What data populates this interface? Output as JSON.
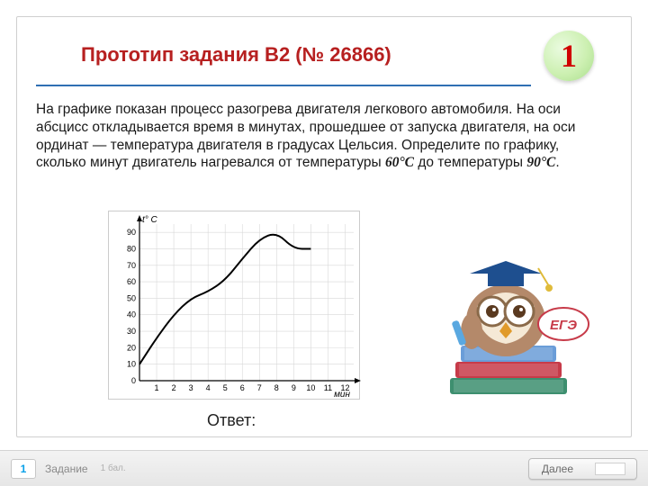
{
  "title": "Прототип задания B2 (№ 26866)",
  "badge_number": "1",
  "problem_text_1": "На графике показан процесс разогрева двигателя легкового автомобиля. На оси абсцисс откладывается время в минутах, прошедшее от запуска двигателя, на оси ординат — температура двигателя в градусах Цельсия. Определите по графику, сколько минут двигатель нагревался от температуры ",
  "temp1": "60°C",
  "problem_text_2": " до температуры ",
  "temp2": "90°C",
  "problem_text_3": ".",
  "answer_label": "Ответ:",
  "bottom": {
    "q_num": "1",
    "task_label": "Задание",
    "score": "1 бал.",
    "next": "Далее"
  },
  "chart": {
    "type": "line",
    "y_axis_label": "t° C",
    "x_axis_label": "мин",
    "x_ticks": [
      1,
      2,
      3,
      4,
      5,
      6,
      7,
      8,
      9,
      10,
      11,
      12
    ],
    "y_ticks": [
      0,
      10,
      20,
      30,
      40,
      50,
      60,
      70,
      80,
      90
    ],
    "xlim": [
      0,
      12.5
    ],
    "ylim": [
      0,
      95
    ],
    "points": [
      {
        "x": 0,
        "y": 10
      },
      {
        "x": 1,
        "y": 26
      },
      {
        "x": 2,
        "y": 40
      },
      {
        "x": 3,
        "y": 50
      },
      {
        "x": 4,
        "y": 54
      },
      {
        "x": 5,
        "y": 61
      },
      {
        "x": 6,
        "y": 74
      },
      {
        "x": 7,
        "y": 86
      },
      {
        "x": 8,
        "y": 90
      },
      {
        "x": 9,
        "y": 80
      },
      {
        "x": 10,
        "y": 80
      }
    ],
    "grid_color": "#d8d8d8",
    "axis_color": "#000000",
    "line_color": "#000000",
    "line_width": 2,
    "tick_fontsize": 9,
    "label_fontsize": 10,
    "background_color": "#ffffff"
  },
  "owl": {
    "hat_color": "#1e4f8f",
    "tassel_color": "#e0bb3a",
    "face_color": "#f5e9d6",
    "body_color": "#b4896a",
    "beak_color": "#e09a2a",
    "book_colors": [
      "#3d8f6f",
      "#c73b49",
      "#6a9dd8"
    ],
    "pencil_color": "#5aa8e0",
    "ege_text": "ЕГЭ",
    "ege_color": "#c73b49"
  }
}
